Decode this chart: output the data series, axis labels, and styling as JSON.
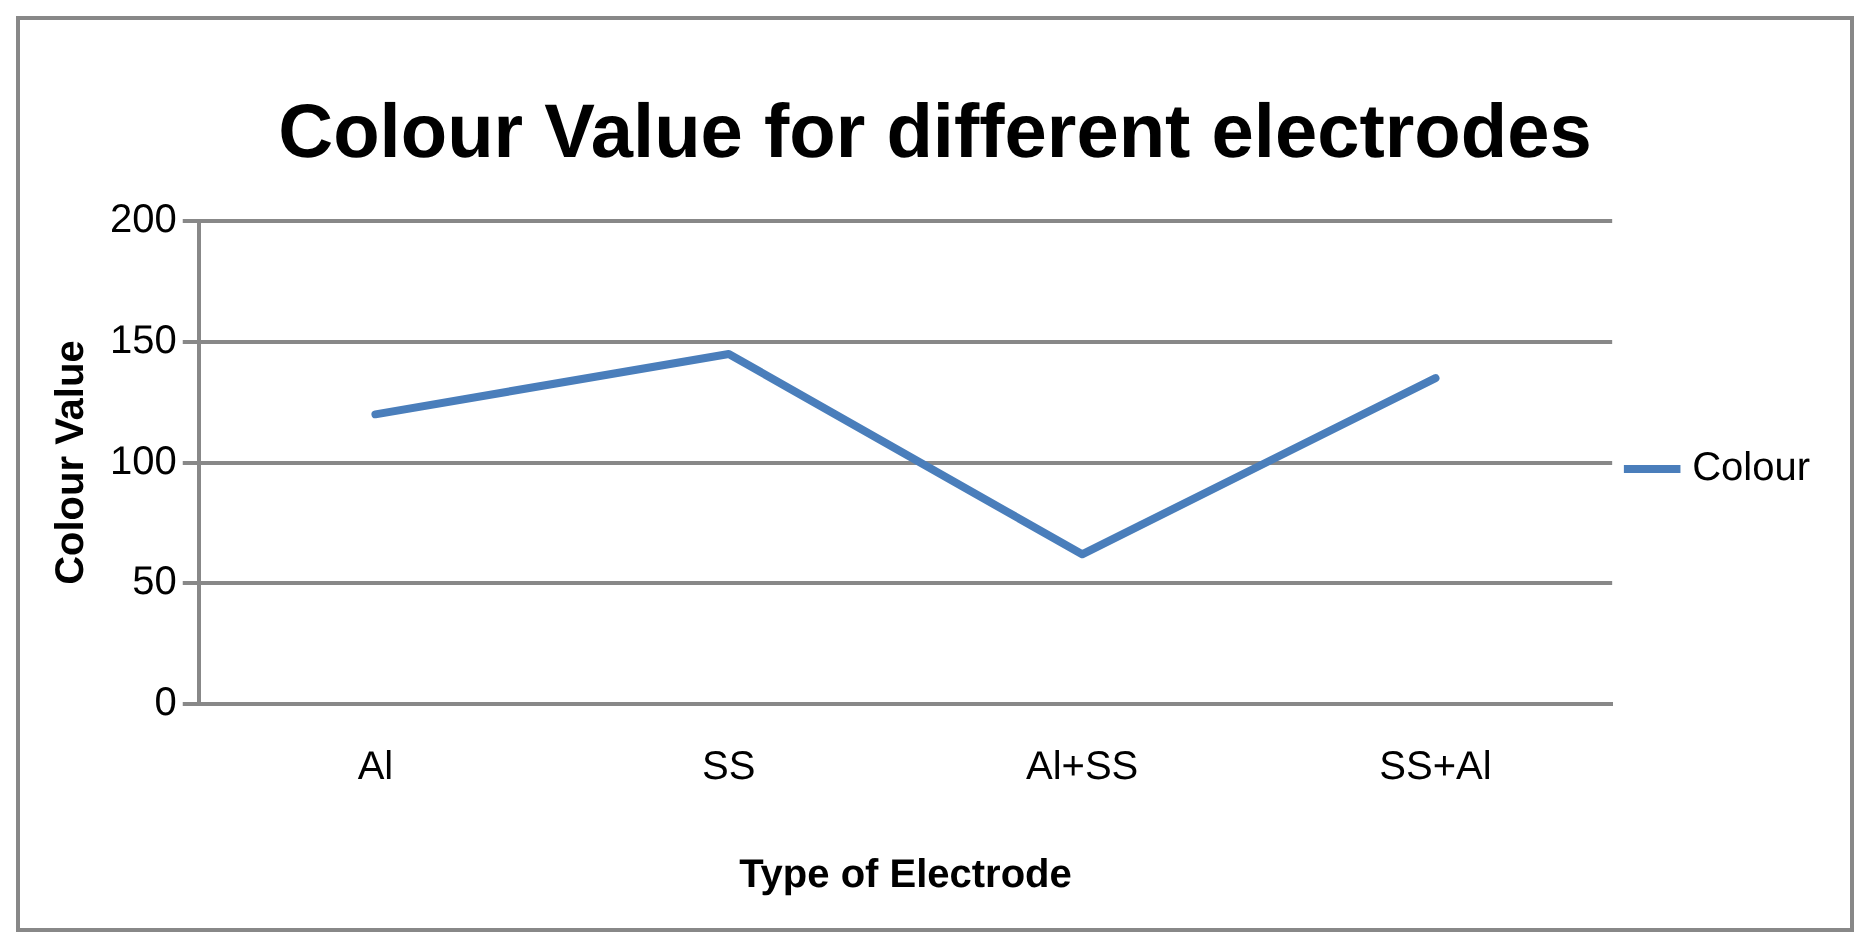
{
  "chart_data": {
    "type": "line",
    "title": "Colour Value for different electrodes",
    "xlabel": "Type of Electrode",
    "ylabel": "Colour Value",
    "categories": [
      "Al",
      "SS",
      "Al+SS",
      "SS+Al"
    ],
    "series": [
      {
        "name": "Colour",
        "color": "#4a7ebb",
        "values": [
          120,
          145,
          62,
          135
        ]
      }
    ],
    "ylim": [
      0,
      200
    ],
    "yticks": [
      0,
      50,
      100,
      150,
      200
    ],
    "grid": "y",
    "legend": "right",
    "marker": "none",
    "line_style": "solid"
  }
}
